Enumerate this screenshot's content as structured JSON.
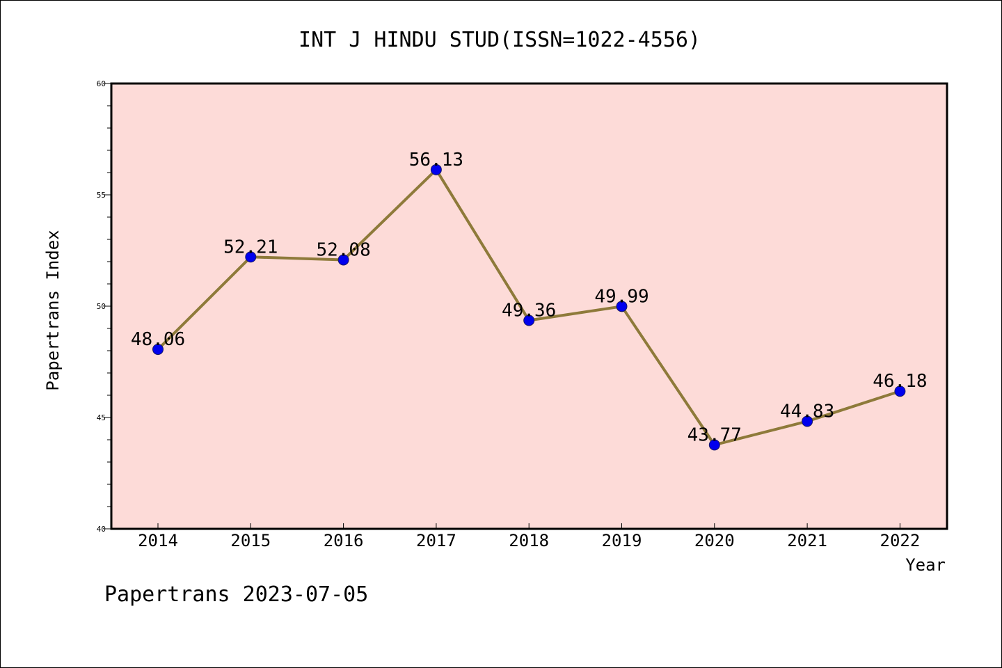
{
  "chart_data": {
    "type": "line",
    "title": "INT J HINDU STUD(ISSN=1022-4556)",
    "xlabel": "Year",
    "ylabel": "Papertrans Index",
    "categories": [
      "2014",
      "2015",
      "2016",
      "2017",
      "2018",
      "2019",
      "2020",
      "2021",
      "2022"
    ],
    "series": [
      {
        "values": [
          48.06,
          52.21,
          52.08,
          56.13,
          49.36,
          49.99,
          43.77,
          44.83,
          46.18
        ],
        "labels": [
          "48.06",
          "52.21",
          "52.08",
          "56.13",
          "49.36",
          "49.99",
          "43.77",
          "44.83",
          "46.18"
        ]
      }
    ],
    "ylim": [
      40,
      60
    ],
    "yticks": [
      "40",
      "45",
      "50",
      "55",
      "60"
    ],
    "grid": false,
    "legend": "none",
    "colors": {
      "plot_background": "#fddbd8",
      "line": "#8e7a3a",
      "marker": "#0000ee",
      "axis": "#000000"
    }
  },
  "footer": "Papertrans 2023-07-05"
}
